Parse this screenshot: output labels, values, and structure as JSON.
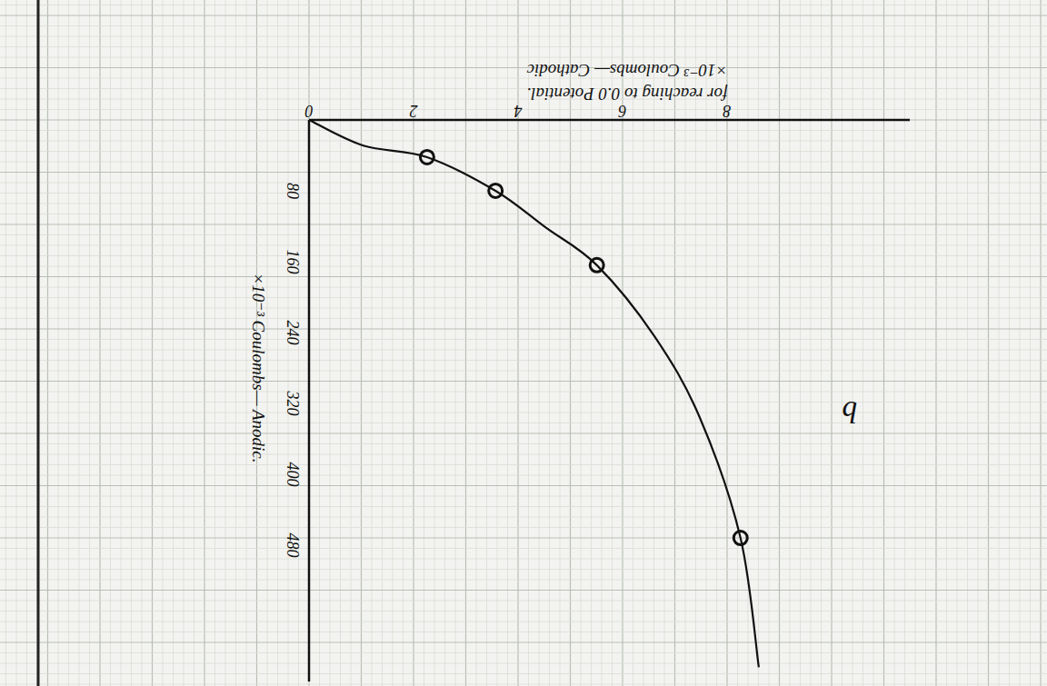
{
  "chart_data": {
    "type": "line",
    "panel_label": "b",
    "x_label": [
      "×10⁻³ Coulombs— Cathodic",
      "for reaching to 0.0 Potential."
    ],
    "y_label": "×10⁻³ Coulombs— Anodic.",
    "xlim": [
      0,
      11.5
    ],
    "ylim": [
      0,
      634
    ],
    "xticks": [
      0,
      2,
      4,
      6,
      8
    ],
    "yticks": [
      80,
      160,
      240,
      320,
      400,
      480
    ],
    "color": "#111111",
    "series": [
      {
        "type": "line",
        "line_style": "solid",
        "marker": "none",
        "x": [
          0,
          1.04,
          2.26,
          3.57,
          4.52,
          5.51,
          6.61,
          7.48,
          8.26,
          8.61
        ],
        "values": [
          0,
          29,
          42,
          80,
          121,
          164,
          244,
          336,
          472,
          618
        ]
      },
      {
        "type": "scatter",
        "line_style": "none",
        "marker": "circle",
        "x": [
          2.26,
          3.57,
          5.51,
          8.26
        ],
        "values": [
          42,
          80,
          164,
          472
        ]
      }
    ]
  }
}
